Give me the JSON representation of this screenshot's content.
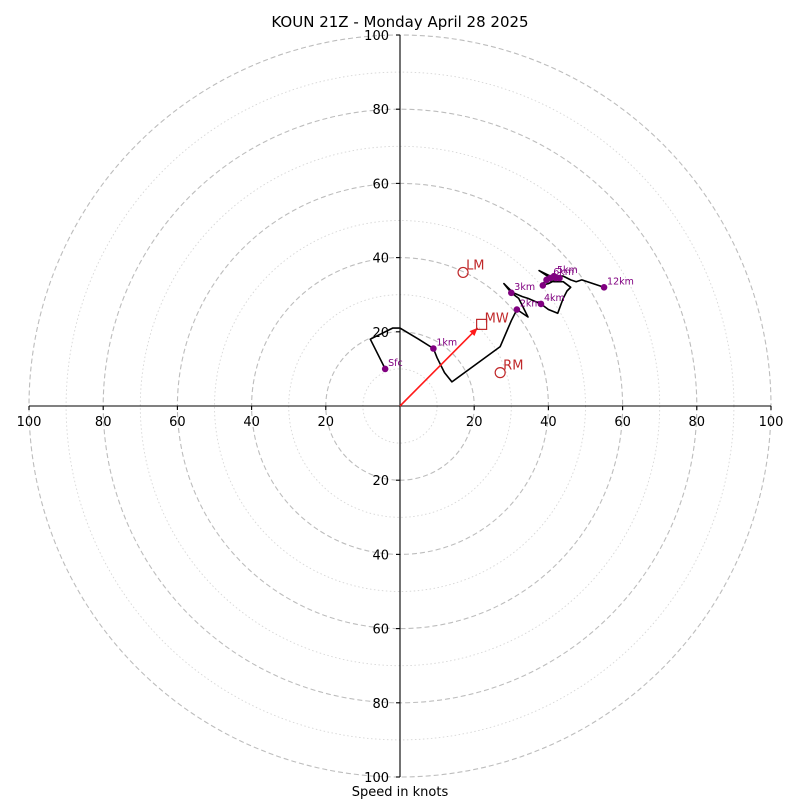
{
  "chart_data": {
    "type": "hodograph",
    "title": "KOUN 21Z - Monday April 28 2025",
    "xlabel": "Speed in knots",
    "units": "knots",
    "max_speed": 100,
    "major_rings": [
      20,
      40,
      60,
      80,
      100
    ],
    "minor_rings": [
      10,
      30,
      50,
      70,
      90
    ],
    "x_tick_labels": [
      "100",
      "80",
      "60",
      "40",
      "20",
      "20",
      "40",
      "60",
      "80",
      "100"
    ],
    "x_tick_values": [
      -100,
      -80,
      -60,
      -40,
      -20,
      20,
      40,
      60,
      80,
      100
    ],
    "y_tick_labels": [
      "100",
      "80",
      "60",
      "40",
      "20",
      "20",
      "40",
      "60",
      "80",
      "100"
    ],
    "y_tick_values": [
      100,
      80,
      60,
      40,
      20,
      -20,
      -40,
      -60,
      -80,
      -100
    ],
    "trace": [
      {
        "u": -4,
        "v": 10
      },
      {
        "u": -8,
        "v": 18
      },
      {
        "u": -2,
        "v": 21
      },
      {
        "u": 0,
        "v": 21
      },
      {
        "u": 5,
        "v": 18
      },
      {
        "u": 9,
        "v": 15.5
      },
      {
        "u": 10,
        "v": 13
      },
      {
        "u": 12,
        "v": 9
      },
      {
        "u": 14,
        "v": 6.5
      },
      {
        "u": 27,
        "v": 16
      },
      {
        "u": 30,
        "v": 23
      },
      {
        "u": 31.5,
        "v": 26
      },
      {
        "u": 34.5,
        "v": 24
      },
      {
        "u": 32,
        "v": 29
      },
      {
        "u": 30,
        "v": 30.5
      },
      {
        "u": 28,
        "v": 33
      },
      {
        "u": 30.5,
        "v": 30.5
      },
      {
        "u": 33,
        "v": 29.5
      },
      {
        "u": 34.5,
        "v": 29
      },
      {
        "u": 38,
        "v": 27.5
      },
      {
        "u": 40,
        "v": 26
      },
      {
        "u": 42.5,
        "v": 25
      },
      {
        "u": 44,
        "v": 29
      },
      {
        "u": 45,
        "v": 31
      },
      {
        "u": 46,
        "v": 32
      },
      {
        "u": 44,
        "v": 33.5
      },
      {
        "u": 41.5,
        "v": 33.5
      },
      {
        "u": 39.5,
        "v": 34
      },
      {
        "u": 38,
        "v": 32.5
      },
      {
        "u": 40,
        "v": 33
      },
      {
        "u": 43,
        "v": 34.5
      },
      {
        "u": 41.5,
        "v": 35
      },
      {
        "u": 40.5,
        "v": 34.5
      },
      {
        "u": 37.5,
        "v": 36.5
      },
      {
        "u": 40.5,
        "v": 35
      },
      {
        "u": 42.5,
        "v": 35
      },
      {
        "u": 44,
        "v": 35
      },
      {
        "u": 46,
        "v": 34
      },
      {
        "u": 47.5,
        "v": 33.5
      },
      {
        "u": 49,
        "v": 34
      },
      {
        "u": 55,
        "v": 32
      }
    ],
    "height_markers": [
      {
        "label": "Sfc",
        "u": -4,
        "v": 10
      },
      {
        "label": "1km",
        "u": 9,
        "v": 15.5
      },
      {
        "label": "2km",
        "u": 31.5,
        "v": 26
      },
      {
        "label": "3km",
        "u": 30,
        "v": 30.5
      },
      {
        "label": "4km",
        "u": 38,
        "v": 27.5
      },
      {
        "label": "",
        "u": 38.5,
        "v": 32.5
      },
      {
        "label": "",
        "u": 39.5,
        "v": 34
      },
      {
        "label": "6km",
        "u": 40.5,
        "v": 34.5
      },
      {
        "label": "",
        "u": 42,
        "v": 34.5
      },
      {
        "label": "",
        "u": 43,
        "v": 34.5
      },
      {
        "label": "5km",
        "u": 41.5,
        "v": 35
      },
      {
        "label": "12km",
        "u": 55,
        "v": 32
      }
    ],
    "storm_motion": {
      "mean_wind": {
        "label": "MW",
        "u": 22,
        "v": 22
      },
      "left_mover": {
        "label": "LM",
        "u": 17,
        "v": 36
      },
      "right_mover": {
        "label": "RM",
        "u": 27,
        "v": 9
      }
    },
    "colors": {
      "trace": "#000000",
      "height_markers": "#800080",
      "storm_motion": "#c0282a",
      "mean_wind_vector": "#ff1a1a",
      "grid": "#bdbdbd"
    }
  }
}
